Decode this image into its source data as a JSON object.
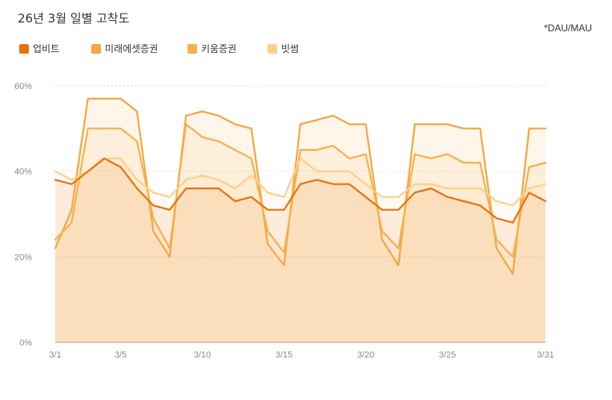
{
  "title": "26년 3월 일별 고착도",
  "note": "*DAU/MAU",
  "chart_data": {
    "type": "line",
    "title": "26년 3월 일별 고착도",
    "x": [
      "3/1",
      "3/2",
      "3/3",
      "3/4",
      "3/5",
      "3/6",
      "3/7",
      "3/8",
      "3/9",
      "3/10",
      "3/11",
      "3/12",
      "3/13",
      "3/14",
      "3/15",
      "3/16",
      "3/17",
      "3/18",
      "3/19",
      "3/20",
      "3/21",
      "3/22",
      "3/23",
      "3/24",
      "3/25",
      "3/26",
      "3/27",
      "3/28",
      "3/29",
      "3/30",
      "3/31"
    ],
    "x_ticks": [
      "3/1",
      "3/5",
      "3/10",
      "3/15",
      "3/20",
      "3/25",
      "3/31"
    ],
    "y_ticks": [
      "0%",
      "20%",
      "40%",
      "60%"
    ],
    "ylim": [
      0,
      60
    ],
    "grid": true,
    "legend_position": "top-left",
    "series": [
      {
        "name": "업비트",
        "color": "#E8720C",
        "values": [
          38,
          37,
          40,
          43,
          41,
          36,
          32,
          31,
          36,
          36,
          36,
          33,
          34,
          31,
          31,
          37,
          38,
          37,
          37,
          34,
          31,
          31,
          35,
          36,
          34,
          33,
          32,
          29,
          28,
          35,
          33
        ]
      },
      {
        "name": "미래에셋증권",
        "color": "#F5A63F",
        "values": [
          22,
          31,
          57,
          57,
          57,
          54,
          26,
          20,
          53,
          54,
          53,
          51,
          50,
          23,
          18,
          51,
          52,
          53,
          51,
          51,
          24,
          18,
          51,
          51,
          51,
          50,
          50,
          22,
          16,
          50,
          50
        ]
      },
      {
        "name": "키움증권",
        "color": "#F7B04A",
        "values": [
          24,
          28,
          50,
          50,
          50,
          47,
          29,
          22,
          51,
          48,
          47,
          45,
          43,
          26,
          21,
          45,
          45,
          46,
          43,
          44,
          26,
          22,
          44,
          43,
          44,
          42,
          42,
          24,
          20,
          41,
          42
        ]
      },
      {
        "name": "빗썸",
        "color": "#FDD089",
        "values": [
          40,
          38,
          40,
          43,
          43,
          38,
          35,
          34,
          38,
          39,
          38,
          36,
          39,
          35,
          34,
          43,
          40,
          40,
          40,
          37,
          34,
          34,
          37,
          37,
          36,
          36,
          36,
          33,
          32,
          36,
          37
        ]
      }
    ]
  }
}
